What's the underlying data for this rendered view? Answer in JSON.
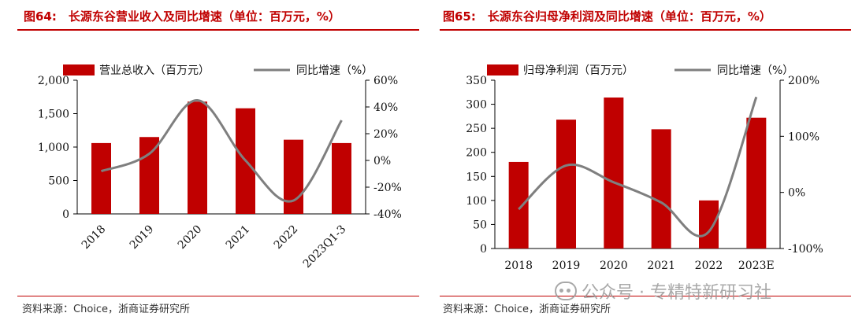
{
  "panels": [
    {
      "title": "图64:　长源东谷营业收入及同比增速（单位：百万元，%）",
      "source": "资料来源：Choice，浙商证券研究所"
    },
    {
      "title": "图65:　长源东谷归母净利润及同比增速（单位：百万元，%）",
      "source": "资料来源：Choice，浙商证券研究所"
    }
  ],
  "watermark": {
    "text": "公众号 · 专精特新研习社",
    "icon": "wechat-icon"
  },
  "colors": {
    "bar": "#c00000",
    "line": "#7f7f7f",
    "accent": "#c00000"
  },
  "chart_data": [
    {
      "type": "bar+line",
      "title": "长源东谷营业收入及同比增速（单位：百万元，%）",
      "categories": [
        "2018",
        "2019",
        "2020",
        "2021",
        "2022",
        "2023Q1-3"
      ],
      "series": [
        {
          "name": "营业总收入（百万元）",
          "type": "bar",
          "axis": "left",
          "values": [
            1060,
            1150,
            1680,
            1580,
            1110,
            1060
          ]
        },
        {
          "name": "同比增速（%）",
          "type": "line",
          "axis": "right",
          "values": [
            -8,
            5,
            45,
            0,
            -30,
            30
          ]
        }
      ],
      "left_axis": {
        "min": 0,
        "max": 2000,
        "ticks": [
          0,
          500,
          1000,
          1500,
          2000
        ],
        "labels": [
          "0",
          "500",
          "1,000",
          "1,500",
          "2,000"
        ]
      },
      "right_axis": {
        "min": -40,
        "max": 60,
        "ticks": [
          -40,
          -20,
          0,
          20,
          40,
          60
        ],
        "labels": [
          "-40%",
          "-20%",
          "0%",
          "20%",
          "40%",
          "60%"
        ]
      },
      "rotate_x_labels": true,
      "legend": "top"
    },
    {
      "type": "bar+line",
      "title": "长源东谷归母净利润及同比增速（单位：百万元，%）",
      "categories": [
        "2018",
        "2019",
        "2020",
        "2021",
        "2022",
        "2023E"
      ],
      "series": [
        {
          "name": "归母净利润（百万元）",
          "type": "bar",
          "axis": "left",
          "values": [
            180,
            268,
            314,
            248,
            100,
            272
          ]
        },
        {
          "name": "同比增速（%）",
          "type": "line",
          "axis": "right",
          "values": [
            -30,
            48,
            18,
            -18,
            -70,
            170
          ]
        }
      ],
      "left_axis": {
        "min": 0,
        "max": 350,
        "ticks": [
          0,
          50,
          100,
          150,
          200,
          250,
          300,
          350
        ],
        "labels": [
          "0",
          "50",
          "100",
          "150",
          "200",
          "250",
          "300",
          "350"
        ]
      },
      "right_axis": {
        "min": -100,
        "max": 200,
        "ticks": [
          -100,
          0,
          100,
          200
        ],
        "labels": [
          "-100%",
          "0%",
          "100%",
          "200%"
        ]
      },
      "rotate_x_labels": false,
      "legend": "top"
    }
  ]
}
